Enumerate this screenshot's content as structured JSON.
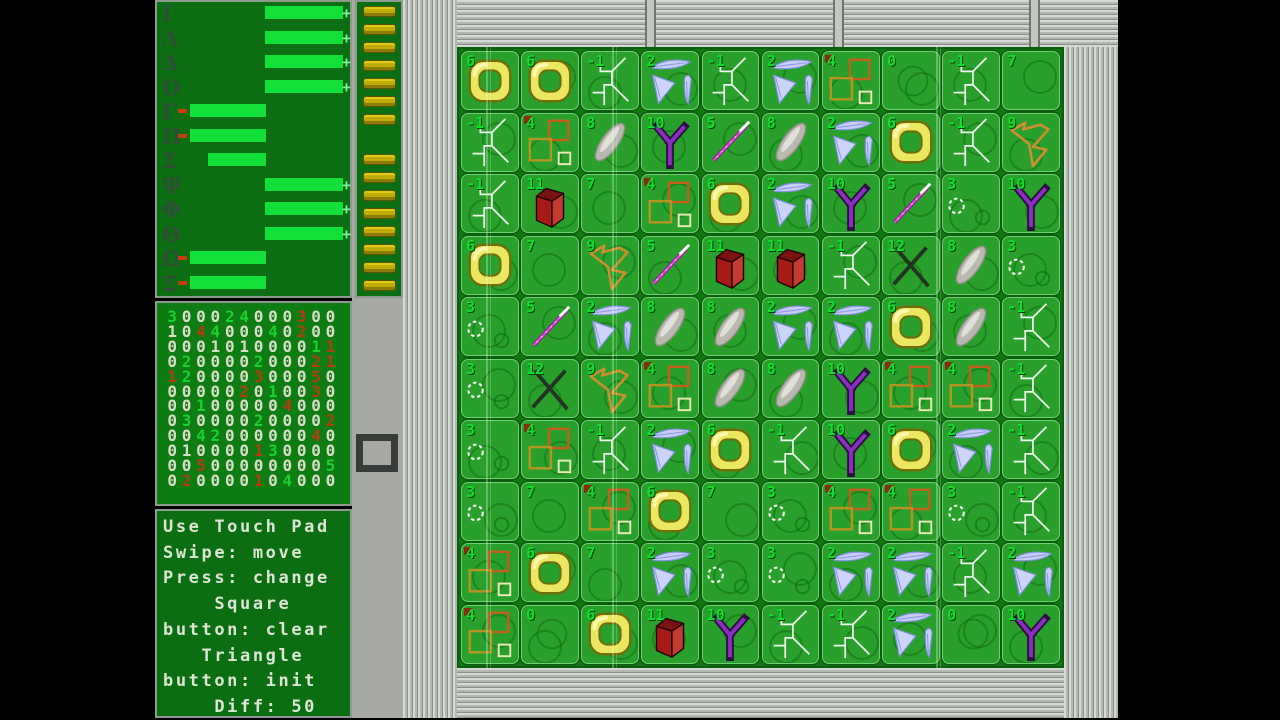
{
  "legend_panel": {
    "rows": [
      {
        "letter": "Ι",
        "bar": "right",
        "tick": false,
        "plus": true
      },
      {
        "letter": "Λ",
        "bar": "right",
        "tick": false,
        "plus": true
      },
      {
        "letter": "Δ",
        "bar": "right",
        "tick": false,
        "plus": true
      },
      {
        "letter": "Ο",
        "bar": "right",
        "tick": false,
        "plus": true
      },
      {
        "letter": "Γ",
        "bar": "left",
        "tick": true,
        "plus": false
      },
      {
        "letter": "Π",
        "bar": "left",
        "tick": true,
        "plus": false
      },
      {
        "letter": "Σ",
        "bar": "left_short",
        "tick": false,
        "plus": false
      },
      {
        "letter": "Ψ",
        "bar": "right",
        "tick": false,
        "plus": true
      },
      {
        "letter": "Φ",
        "bar": "right",
        "tick": false,
        "plus": true
      },
      {
        "letter": "Θ",
        "bar": "right",
        "tick": false,
        "plus": true
      },
      {
        "letter": "Ω",
        "bar": "left",
        "tick": true,
        "plus": false
      },
      {
        "letter": "Ξ",
        "bar": "left",
        "tick": true,
        "plus": false
      }
    ]
  },
  "connector": {
    "pads_top_group": 7,
    "pads_bottom_group": 8
  },
  "number_matrix": {
    "rows": [
      {
        "digits": "300024000300",
        "colors": "gwwwggwwwrww"
      },
      {
        "digits": "104400040200",
        "colors": "wwrgwwwgwrww"
      },
      {
        "digits": "000101000011",
        "colors": "wwwwwwwwwwgr"
      },
      {
        "digits": "020000200021",
        "colors": "wgwwwwgwwwrr"
      },
      {
        "digits": "120000300050",
        "colors": "rgwwwwrwwwrw"
      },
      {
        "digits": "000002010030",
        "colors": "wwwwwrwgwwrw"
      },
      {
        "digits": "001000004000",
        "colors": "wwgwwwwwrwww"
      },
      {
        "digits": "030000200002",
        "colors": "wgwwwwgwwwwr"
      },
      {
        "digits": "004200000040",
        "colors": "wwggwwwwwwrw"
      },
      {
        "digits": "010000130000",
        "colors": "wwwwwwrgwwww"
      },
      {
        "digits": "005000000005",
        "colors": "wwrwwwwwwwwg"
      },
      {
        "digits": "020000104000",
        "colors": "wrwwwwrwgwww"
      }
    ]
  },
  "instructions": {
    "lines": [
      "Use Touch Pad",
      "Swipe: move",
      "Press: change",
      "    Square",
      "button: clear",
      "   Triangle",
      "button: init",
      "    Diff: 50"
    ]
  },
  "touchpad_cursor_icon": "selection-frame-icon",
  "board": {
    "rows": [
      [
        {
          "n": "6",
          "icon": "yellow-ring"
        },
        {
          "n": "6",
          "icon": "yellow-ring"
        },
        {
          "n": "-1",
          "icon": "circuit-trace"
        },
        {
          "n": "2",
          "icon": "blue-fern"
        },
        {
          "n": "-1",
          "icon": "circuit-trace"
        },
        {
          "n": "2",
          "icon": "blue-fern"
        },
        {
          "n": "4",
          "icon": "orange-squares"
        },
        {
          "n": "0",
          "icon": "empty"
        },
        {
          "n": "-1",
          "icon": "circuit-trace"
        },
        {
          "n": "7",
          "icon": "cyan-l"
        }
      ],
      [
        {
          "n": "-1",
          "icon": "circuit-trace"
        },
        {
          "n": "4",
          "icon": "orange-squares"
        },
        {
          "n": "8",
          "icon": "gray-leaf"
        },
        {
          "n": "10",
          "icon": "purple-y"
        },
        {
          "n": "5",
          "icon": "pink-needle"
        },
        {
          "n": "8",
          "icon": "gray-leaf"
        },
        {
          "n": "2",
          "icon": "blue-fern"
        },
        {
          "n": "6",
          "icon": "yellow-ring"
        },
        {
          "n": "-1",
          "icon": "circuit-trace"
        },
        {
          "n": "9",
          "icon": "orange-bow"
        }
      ],
      [
        {
          "n": "-1",
          "icon": "circuit-trace"
        },
        {
          "n": "11",
          "icon": "red-box"
        },
        {
          "n": "7",
          "icon": "cyan-l"
        },
        {
          "n": "4",
          "icon": "orange-squares"
        },
        {
          "n": "6",
          "icon": "yellow-ring"
        },
        {
          "n": "2",
          "icon": "blue-fern"
        },
        {
          "n": "10",
          "icon": "purple-y"
        },
        {
          "n": "5",
          "icon": "pink-needle"
        },
        {
          "n": "3",
          "icon": "dashed-circle"
        },
        {
          "n": "10",
          "icon": "purple-y"
        }
      ],
      [
        {
          "n": "6",
          "icon": "yellow-ring"
        },
        {
          "n": "7",
          "icon": "cyan-l"
        },
        {
          "n": "9",
          "icon": "orange-bow"
        },
        {
          "n": "5",
          "icon": "pink-needle"
        },
        {
          "n": "11",
          "icon": "red-box"
        },
        {
          "n": "11",
          "icon": "red-box"
        },
        {
          "n": "-1",
          "icon": "circuit-trace"
        },
        {
          "n": "12",
          "icon": "black-cross"
        },
        {
          "n": "8",
          "icon": "gray-leaf"
        },
        {
          "n": "3",
          "icon": "dashed-circle"
        }
      ],
      [
        {
          "n": "3",
          "icon": "dashed-circle"
        },
        {
          "n": "5",
          "icon": "pink-needle"
        },
        {
          "n": "2",
          "icon": "blue-fern"
        },
        {
          "n": "8",
          "icon": "gray-leaf"
        },
        {
          "n": "8",
          "icon": "gray-leaf"
        },
        {
          "n": "2",
          "icon": "blue-fern"
        },
        {
          "n": "2",
          "icon": "blue-fern"
        },
        {
          "n": "6",
          "icon": "yellow-ring"
        },
        {
          "n": "8",
          "icon": "gray-leaf"
        },
        {
          "n": "-1",
          "icon": "circuit-trace"
        }
      ],
      [
        {
          "n": "3",
          "icon": "dashed-circle"
        },
        {
          "n": "12",
          "icon": "black-cross"
        },
        {
          "n": "9",
          "icon": "orange-bow"
        },
        {
          "n": "4",
          "icon": "orange-squares"
        },
        {
          "n": "8",
          "icon": "gray-leaf"
        },
        {
          "n": "8",
          "icon": "gray-leaf"
        },
        {
          "n": "10",
          "icon": "purple-y"
        },
        {
          "n": "4",
          "icon": "orange-squares"
        },
        {
          "n": "4",
          "icon": "orange-squares"
        },
        {
          "n": "-1",
          "icon": "circuit-trace"
        }
      ],
      [
        {
          "n": "3",
          "icon": "dashed-circle"
        },
        {
          "n": "4",
          "icon": "orange-squares"
        },
        {
          "n": "-1",
          "icon": "circuit-trace"
        },
        {
          "n": "2",
          "icon": "blue-fern"
        },
        {
          "n": "6",
          "icon": "yellow-ring"
        },
        {
          "n": "-1",
          "icon": "circuit-trace"
        },
        {
          "n": "10",
          "icon": "purple-y"
        },
        {
          "n": "6",
          "icon": "yellow-ring"
        },
        {
          "n": "2",
          "icon": "blue-fern"
        },
        {
          "n": "-1",
          "icon": "circuit-trace"
        }
      ],
      [
        {
          "n": "3",
          "icon": "dashed-circle"
        },
        {
          "n": "7",
          "icon": "cyan-l"
        },
        {
          "n": "4",
          "icon": "orange-squares"
        },
        {
          "n": "6",
          "icon": "yellow-ring"
        },
        {
          "n": "7",
          "icon": "cyan-l"
        },
        {
          "n": "3",
          "icon": "dashed-circle"
        },
        {
          "n": "4",
          "icon": "orange-squares"
        },
        {
          "n": "4",
          "icon": "orange-squares"
        },
        {
          "n": "3",
          "icon": "dashed-circle"
        },
        {
          "n": "-1",
          "icon": "circuit-trace"
        }
      ],
      [
        {
          "n": "4",
          "icon": "orange-squares"
        },
        {
          "n": "6",
          "icon": "yellow-ring"
        },
        {
          "n": "7",
          "icon": "cyan-l"
        },
        {
          "n": "2",
          "icon": "blue-fern"
        },
        {
          "n": "3",
          "icon": "dashed-circle"
        },
        {
          "n": "3",
          "icon": "dashed-circle"
        },
        {
          "n": "2",
          "icon": "blue-fern"
        },
        {
          "n": "2",
          "icon": "blue-fern"
        },
        {
          "n": "-1",
          "icon": "circuit-trace"
        },
        {
          "n": "2",
          "icon": "blue-fern"
        }
      ],
      [
        {
          "n": "4",
          "icon": "orange-squares"
        },
        {
          "n": "0",
          "icon": "empty"
        },
        {
          "n": "6",
          "icon": "yellow-ring"
        },
        {
          "n": "11",
          "icon": "red-box"
        },
        {
          "n": "10",
          "icon": "purple-y"
        },
        {
          "n": "-1",
          "icon": "circuit-trace"
        },
        {
          "n": "-1",
          "icon": "circuit-trace"
        },
        {
          "n": "2",
          "icon": "blue-fern"
        },
        {
          "n": "0",
          "icon": "empty"
        },
        {
          "n": "10",
          "icon": "purple-y"
        }
      ]
    ]
  },
  "colors": {
    "bar_green": "#12df37",
    "digit_white": "#d8dcc8",
    "digit_green": "#19d22f",
    "digit_red": "#b33b10",
    "cell_green": "#2aa02c",
    "field_green": "#117712",
    "panel_green": "#0c6e12",
    "board_gray": "#a6aaa3",
    "pad_yellow": "#c0ac08",
    "cell_number_green": "#0de02a"
  }
}
